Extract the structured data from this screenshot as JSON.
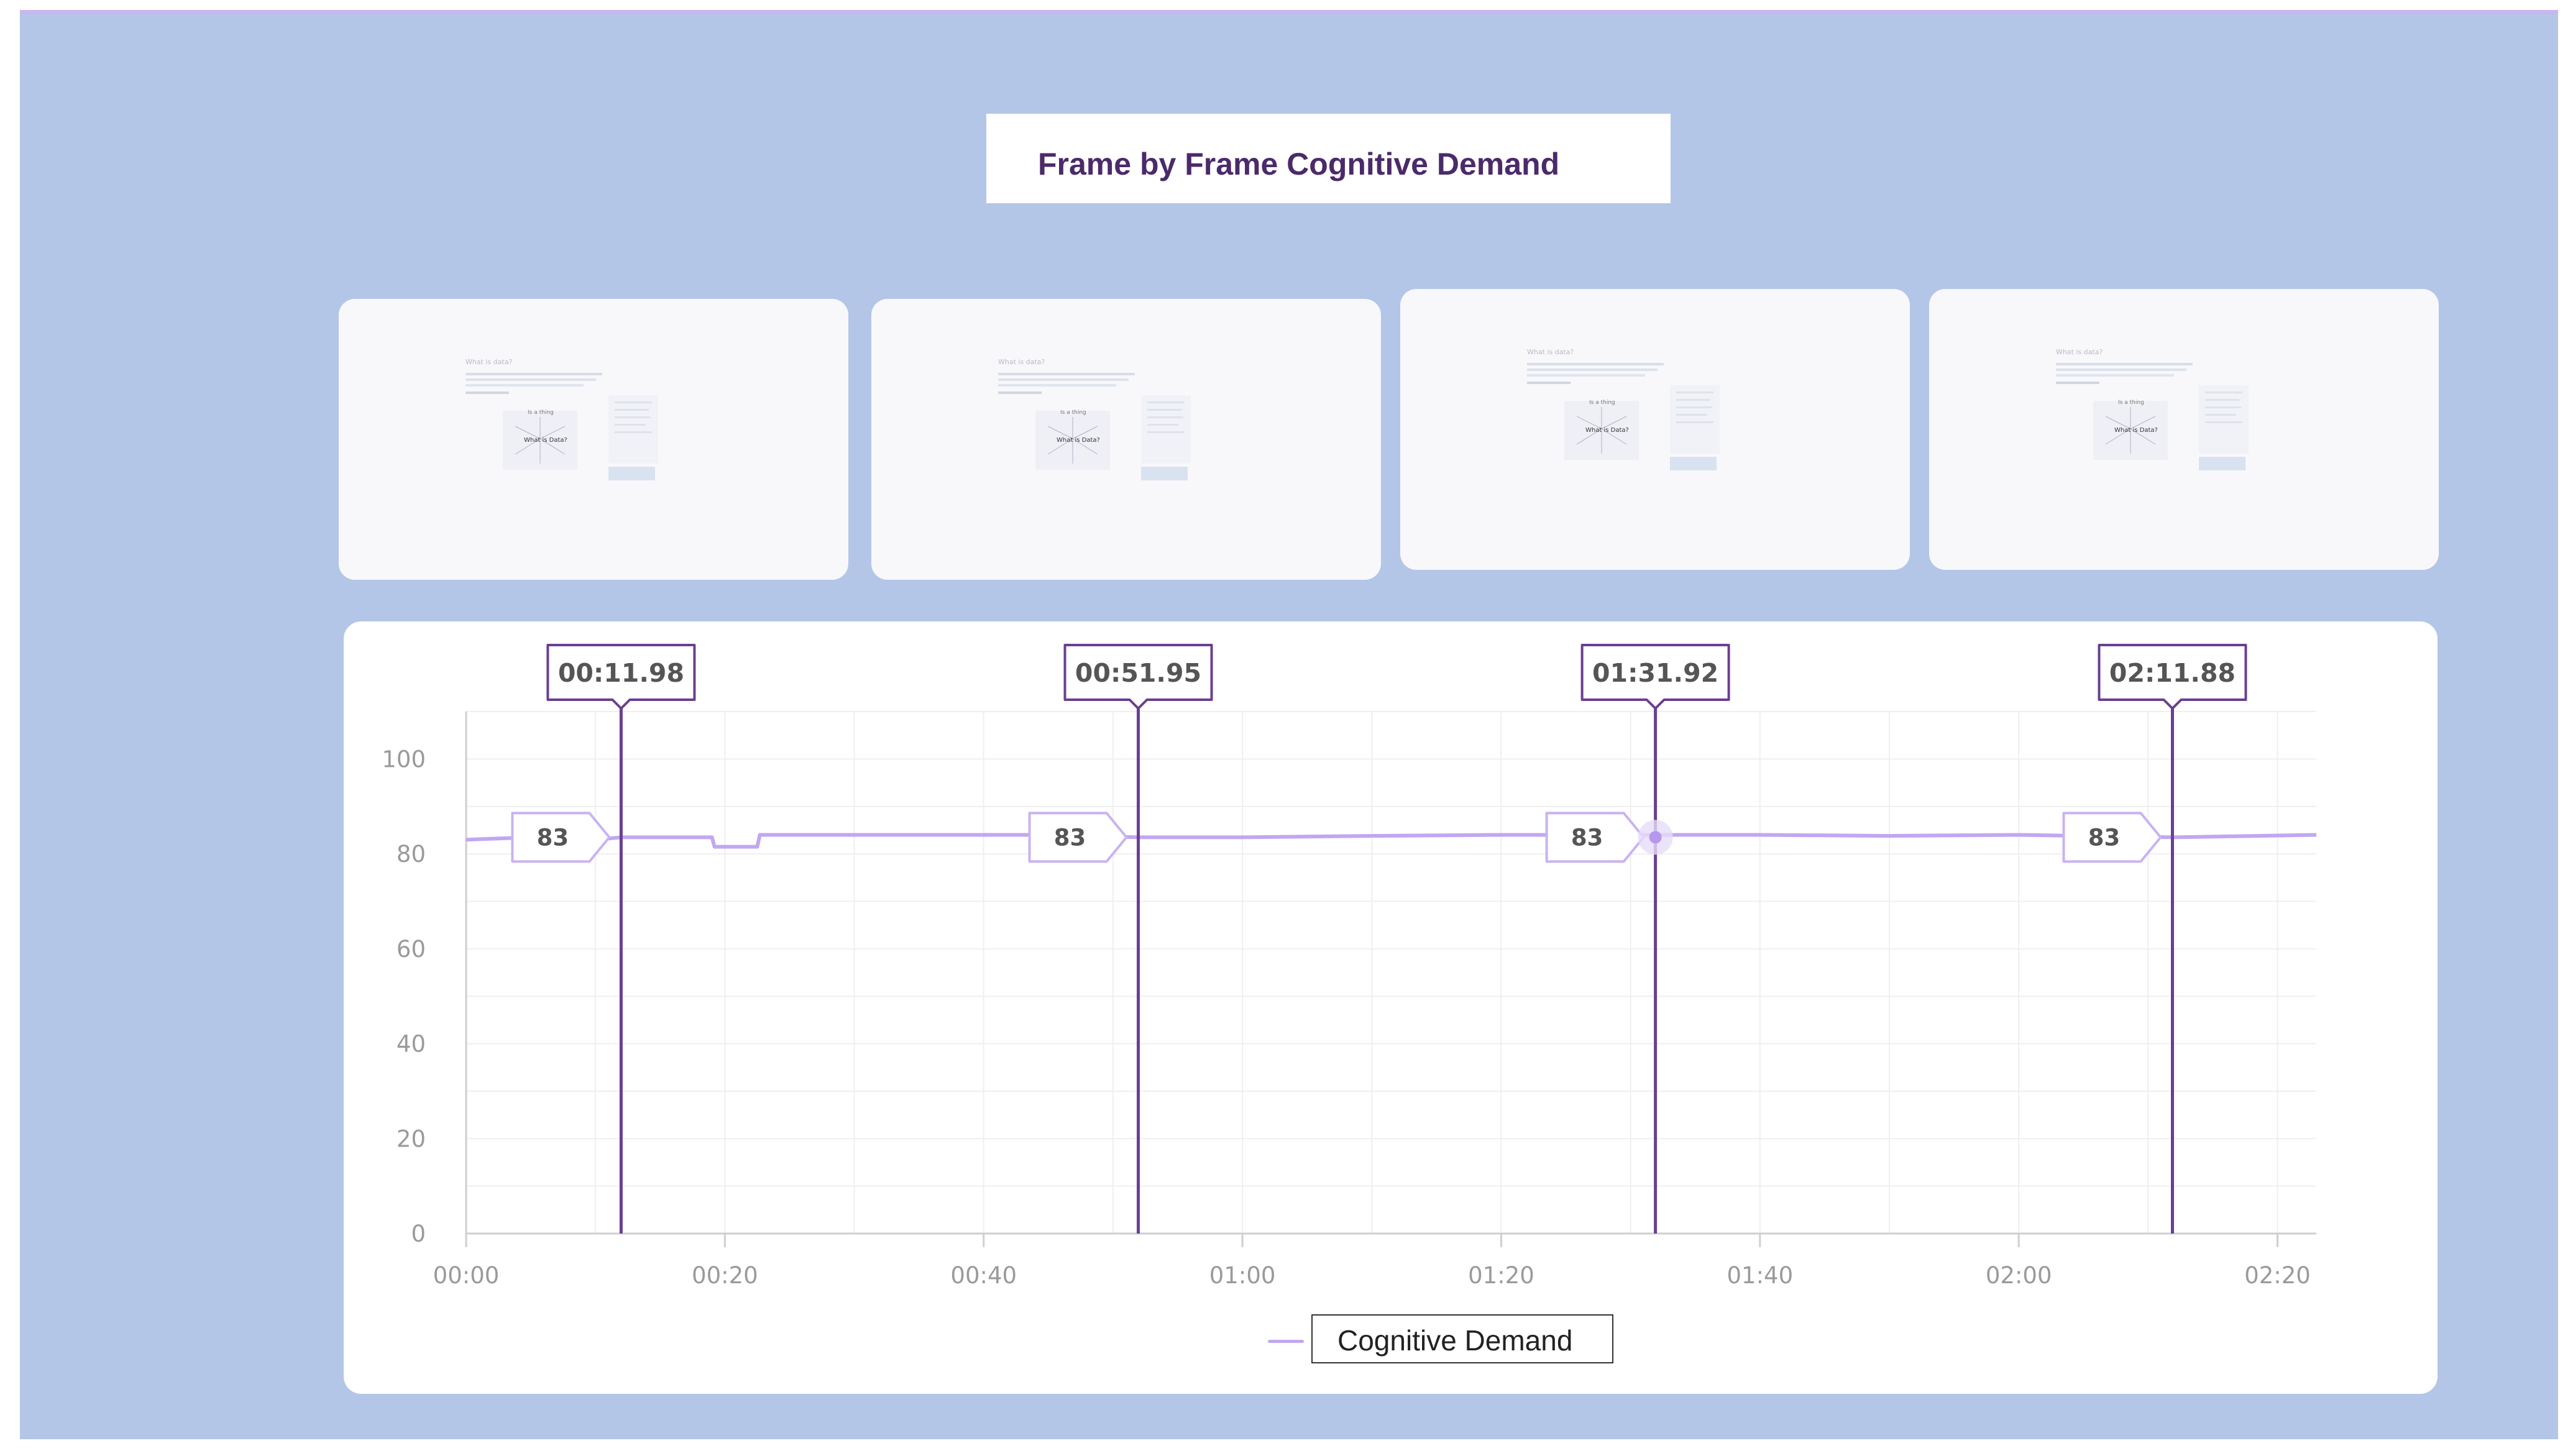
{
  "title": "Frame by Frame Cognitive Demand",
  "thumbnails": [
    {
      "slide_heading": "What is data?",
      "center_label": "What is Data?",
      "top_label": "Is a thing"
    },
    {
      "slide_heading": "What is data?",
      "center_label": "What is Data?",
      "top_label": "Is a thing"
    },
    {
      "slide_heading": "What is data?",
      "center_label": "What is Data?",
      "top_label": "Is a thing"
    },
    {
      "slide_heading": "What is data?",
      "center_label": "What is Data?",
      "top_label": "Is a thing"
    }
  ],
  "legend_label": "Cognitive Demand",
  "colors": {
    "background": "#b4c6e7",
    "series": "#c1a7f2",
    "marker": "#6a3f8f",
    "title": "#4b2a6a"
  },
  "chart_data": {
    "type": "line",
    "title": "Frame by Frame Cognitive Demand",
    "xlabel": "",
    "ylabel": "",
    "xlim": [
      0,
      143
    ],
    "ylim": [
      0,
      110
    ],
    "x_ticks": [
      0,
      20,
      40,
      60,
      80,
      100,
      120,
      140
    ],
    "x_tick_labels": [
      "00:00",
      "00:20",
      "00:40",
      "01:00",
      "01:20",
      "01:40",
      "02:00",
      "02:20"
    ],
    "y_ticks": [
      0,
      20,
      40,
      60,
      80,
      100
    ],
    "y_tick_labels": [
      "0",
      "20",
      "40",
      "60",
      "80",
      "100"
    ],
    "grid": true,
    "legend": "bottom-center",
    "series": [
      {
        "name": "Cognitive Demand",
        "color": "#c1a7f2",
        "x": [
          0,
          5,
          10,
          12,
          15,
          19,
          19.2,
          22.5,
          22.7,
          30,
          40,
          45,
          52,
          60,
          70,
          80,
          92,
          100,
          110,
          120,
          132,
          143
        ],
        "y": [
          83,
          83.5,
          83,
          83.5,
          83.5,
          83.5,
          81.5,
          81.5,
          84,
          84,
          84,
          84,
          83.5,
          83.5,
          83.8,
          84,
          84,
          84,
          83.8,
          84,
          83.5,
          84
        ]
      }
    ],
    "markers": [
      {
        "time": "00:11.98",
        "x": 11.98,
        "value": "83"
      },
      {
        "time": "00:51.95",
        "x": 51.95,
        "value": "83"
      },
      {
        "time": "01:31.92",
        "x": 91.92,
        "value": "83"
      },
      {
        "time": "02:11.88",
        "x": 131.88,
        "value": "83"
      }
    ]
  }
}
